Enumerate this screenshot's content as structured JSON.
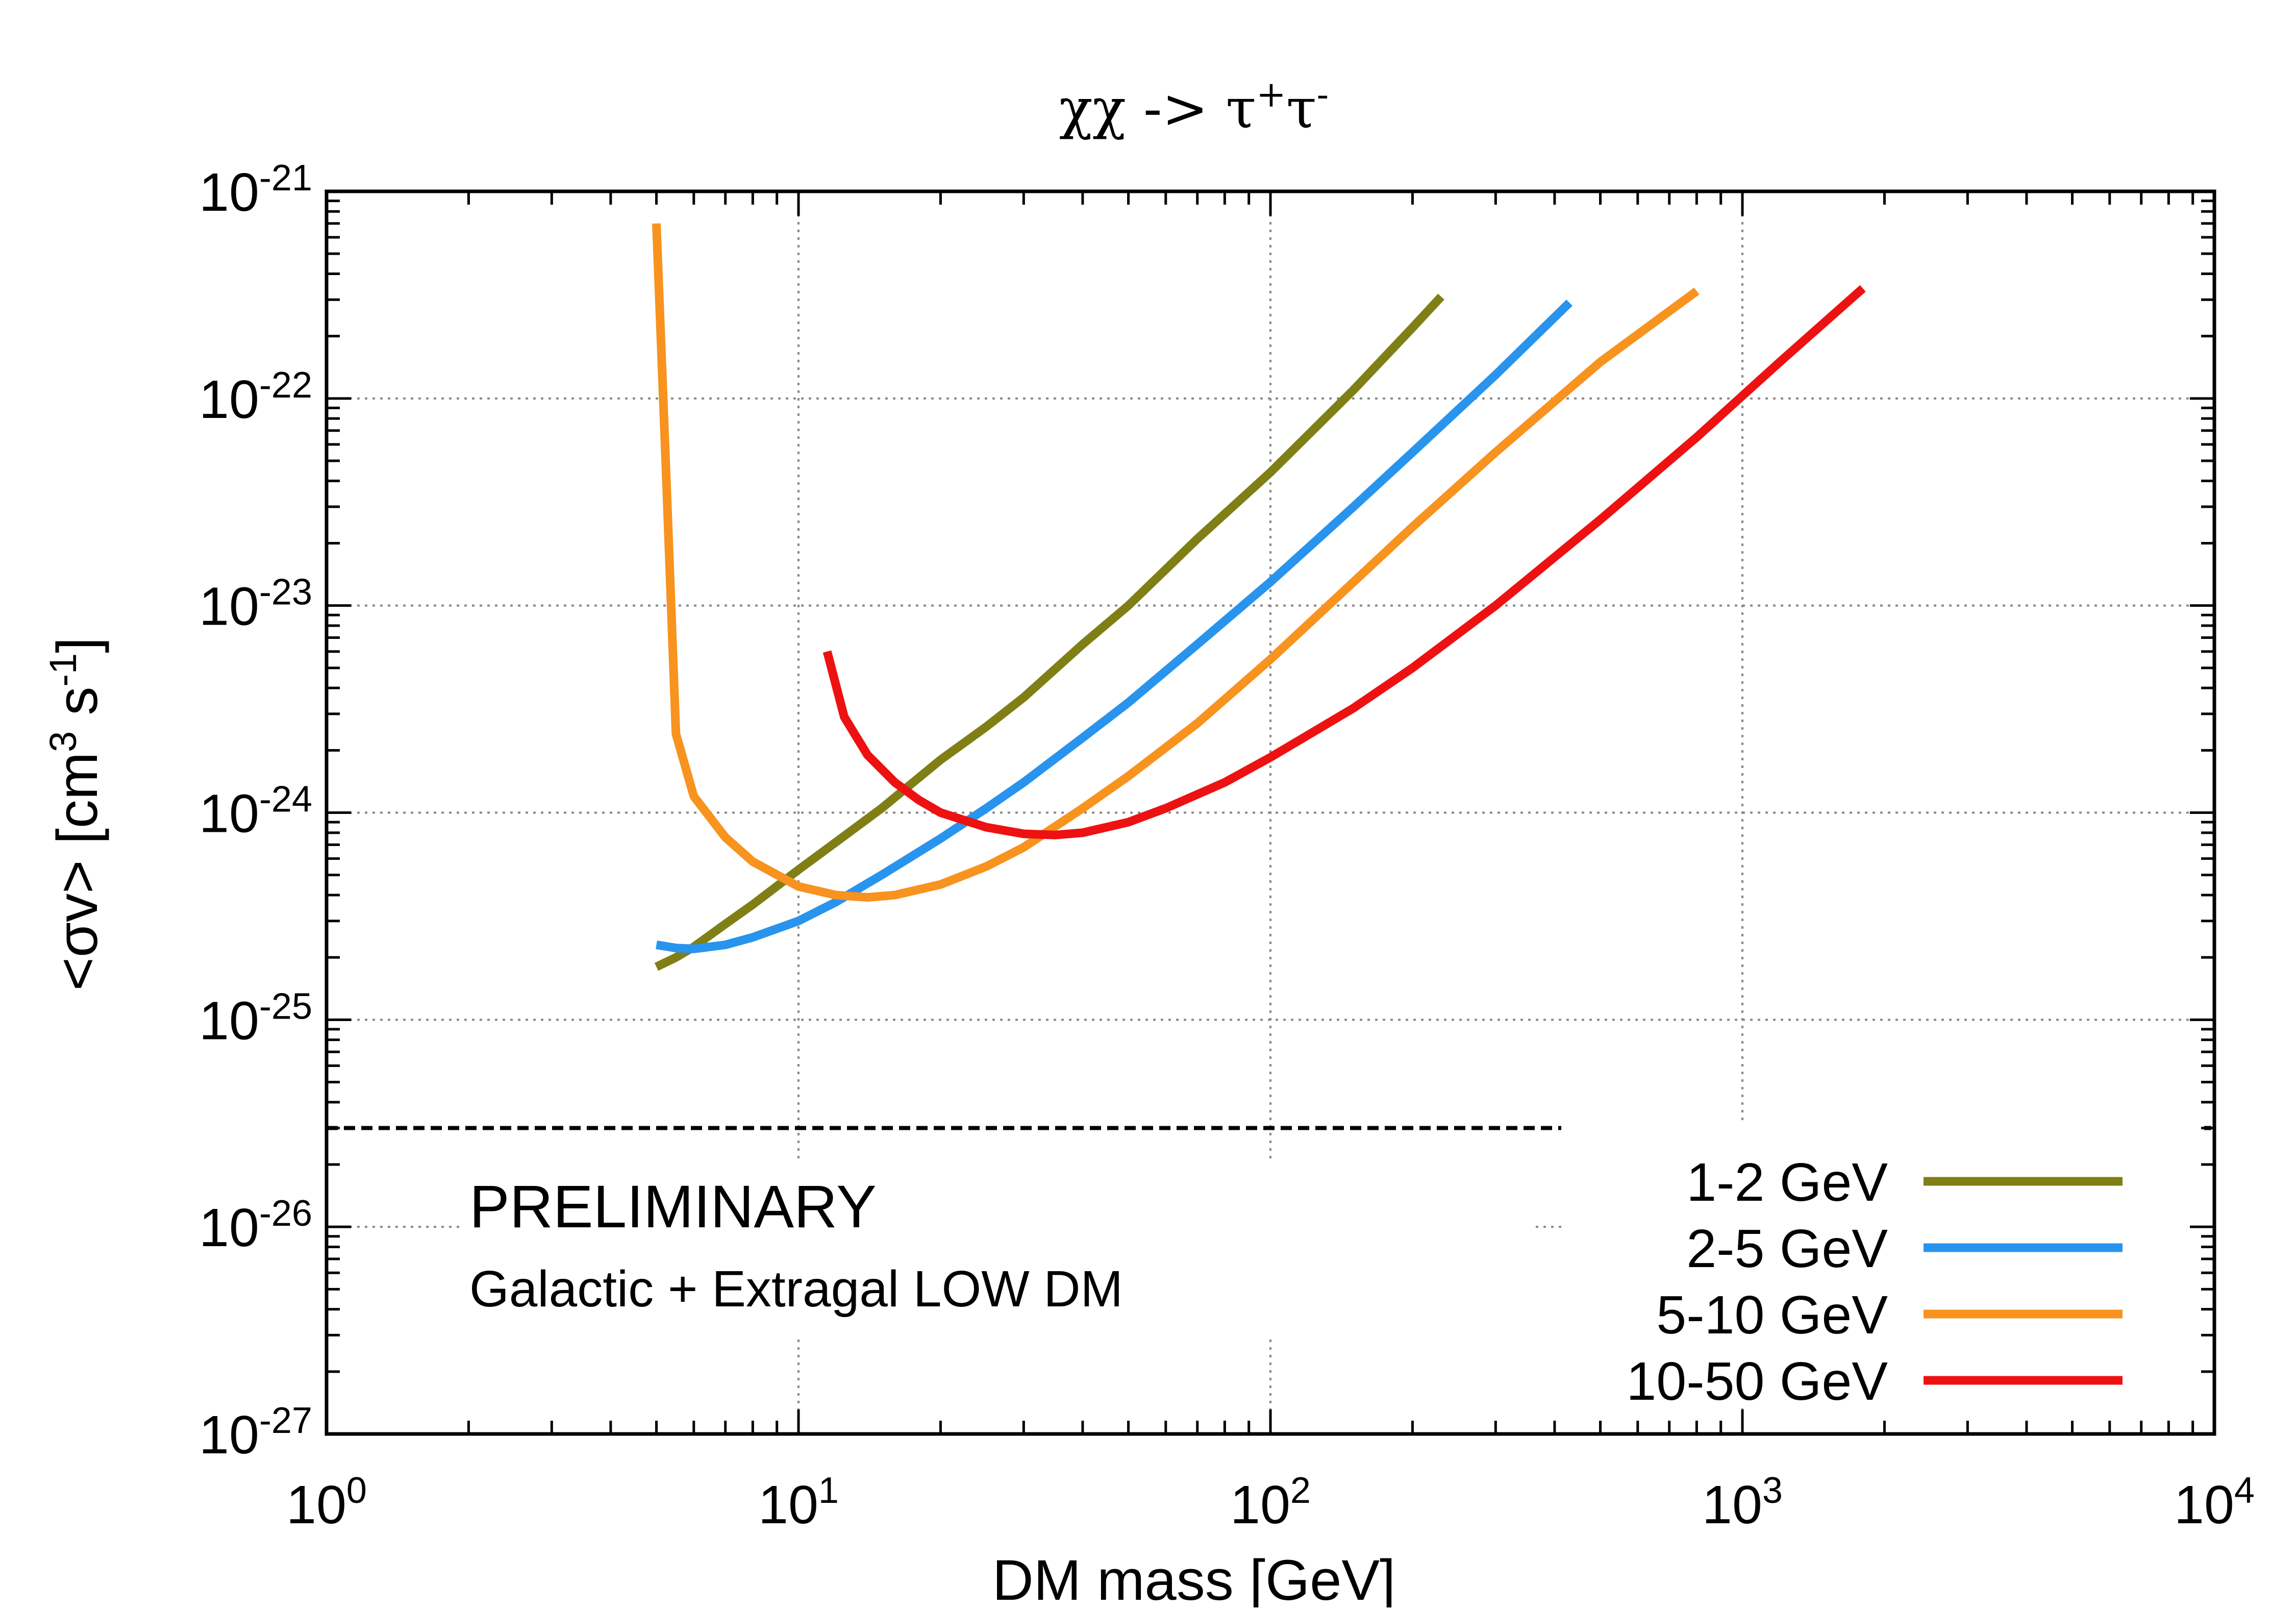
{
  "chart_data": {
    "type": "line",
    "title": {
      "base": "χχ -> τ",
      "sup1": "+",
      "mid": "τ",
      "sup2": "-"
    },
    "xlabel": "DM mass [GeV]",
    "ylabel": {
      "prefix": "<σv> [cm",
      "sup1": "3",
      "mid": " s",
      "sup2": "-1",
      "suffix": "]"
    },
    "x_scale": "log",
    "y_scale": "log",
    "xlim": [
      1,
      10000
    ],
    "ylim": [
      1e-27,
      1e-21
    ],
    "grid": true,
    "legend_position": "bottom-right",
    "x_ticks": [
      {
        "value": 1,
        "base": "10",
        "exp": "0"
      },
      {
        "value": 10,
        "base": "10",
        "exp": "1"
      },
      {
        "value": 100,
        "base": "10",
        "exp": "2"
      },
      {
        "value": 1000,
        "base": "10",
        "exp": "3"
      },
      {
        "value": 10000,
        "base": "10",
        "exp": "4"
      }
    ],
    "y_ticks": [
      {
        "value": 1e-21,
        "base": "10",
        "exp": "-21"
      },
      {
        "value": 1e-22,
        "base": "10",
        "exp": "-22"
      },
      {
        "value": 1e-23,
        "base": "10",
        "exp": "-23"
      },
      {
        "value": 1e-24,
        "base": "10",
        "exp": "-24"
      },
      {
        "value": 1e-25,
        "base": "10",
        "exp": "-25"
      },
      {
        "value": 1e-26,
        "base": "10",
        "exp": "-26"
      },
      {
        "value": 1e-27,
        "base": "10",
        "exp": "-27"
      }
    ],
    "reference_line": {
      "value": 3e-26,
      "style": "dashed",
      "color": "#000000"
    },
    "annotations": [
      {
        "text": "PRELIMINARY",
        "color": "#ee1c1c"
      },
      {
        "text": "Galactic + Extragal LOW DM",
        "color": "#000000"
      }
    ],
    "series": [
      {
        "name": "1-2 GeV",
        "color": "#7f7f15",
        "x": [
          5,
          5.5,
          6,
          7,
          8,
          10,
          12,
          15,
          20,
          25,
          30,
          40,
          50,
          70,
          100,
          150,
          200,
          230
        ],
        "y": [
          1.8e-25,
          2e-25,
          2.25e-25,
          2.9e-25,
          3.6e-25,
          5.3e-25,
          7.2e-25,
          1.05e-24,
          1.8e-24,
          2.6e-24,
          3.6e-24,
          6.5e-24,
          1e-23,
          2.1e-23,
          4.4e-23,
          1.1e-22,
          2.2e-22,
          3.1e-22
        ]
      },
      {
        "name": "2-5 GeV",
        "color": "#2894ee",
        "x": [
          5,
          5.5,
          6,
          7,
          8,
          10,
          12,
          15,
          20,
          25,
          30,
          40,
          50,
          70,
          100,
          150,
          200,
          300,
          430
        ],
        "y": [
          2.3e-25,
          2.22e-25,
          2.2e-25,
          2.3e-25,
          2.5e-25,
          3e-25,
          3.7e-25,
          5e-25,
          7.5e-25,
          1.05e-24,
          1.4e-24,
          2.3e-24,
          3.4e-24,
          6.5e-24,
          1.3e-23,
          3e-23,
          5.5e-23,
          1.3e-22,
          2.9e-22
        ]
      },
      {
        "name": "5-10 GeV",
        "color": "#f7931e",
        "x": [
          5,
          5.25,
          5.5,
          6,
          7,
          8,
          10,
          12,
          14,
          16,
          20,
          25,
          30,
          40,
          50,
          70,
          100,
          150,
          200,
          300,
          500,
          800
        ],
        "y": [
          7e-22,
          4e-23,
          2.4e-24,
          1.2e-24,
          7.6e-25,
          5.8e-25,
          4.4e-25,
          4e-25,
          3.9e-25,
          4e-25,
          4.5e-25,
          5.5e-25,
          6.8e-25,
          1.05e-24,
          1.5e-24,
          2.7e-24,
          5.5e-24,
          1.3e-23,
          2.4e-23,
          5.5e-23,
          1.5e-22,
          3.3e-22
        ]
      },
      {
        "name": "10-50 GeV",
        "color": "#ee1111",
        "x": [
          11.5,
          12.5,
          14,
          16,
          18,
          20,
          25,
          30,
          35,
          40,
          50,
          60,
          80,
          100,
          150,
          200,
          300,
          500,
          800,
          1200,
          1800
        ],
        "y": [
          6e-24,
          2.9e-24,
          1.9e-24,
          1.4e-24,
          1.15e-24,
          1e-24,
          8.5e-25,
          7.9e-25,
          7.8e-25,
          8e-25,
          9e-25,
          1.05e-24,
          1.4e-24,
          1.85e-24,
          3.2e-24,
          5e-24,
          1e-23,
          2.6e-23,
          6.5e-23,
          1.5e-22,
          3.4e-22
        ]
      }
    ]
  }
}
